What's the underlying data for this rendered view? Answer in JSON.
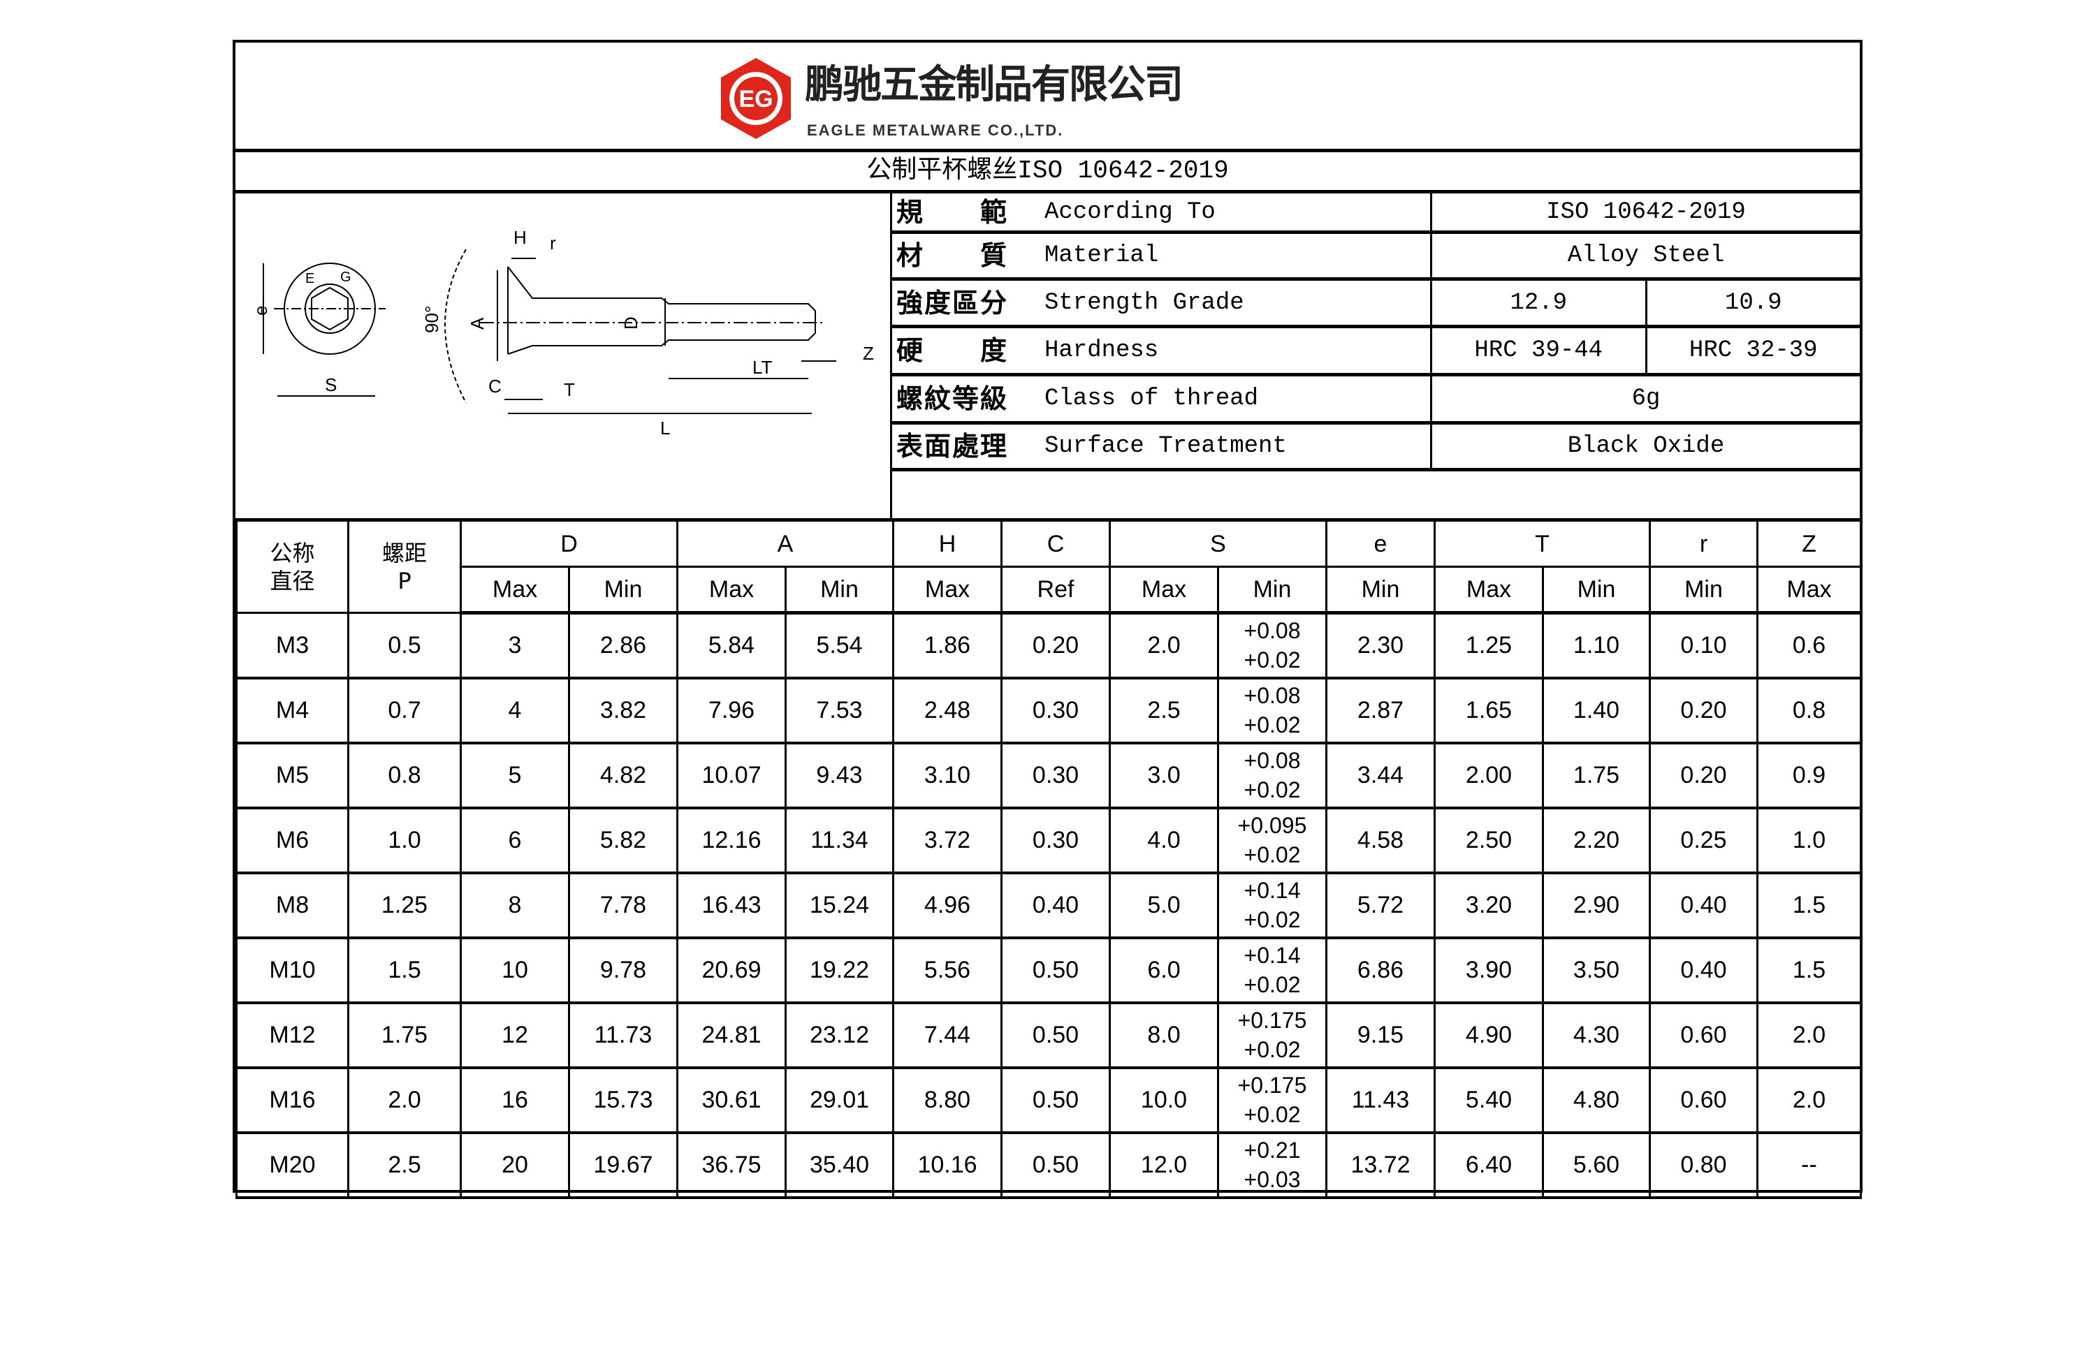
{
  "header": {
    "company_cn": "鹏驰五金制品有限公司",
    "company_en": "EAGLE METALWARE CO.,LTD.",
    "logo_letters": "EG",
    "logo_color": "#e0261b"
  },
  "title": "公制平杯螺丝ISO 10642-2019",
  "diagram_labels": {
    "H": "H",
    "r": "r",
    "e": "e",
    "E": "E",
    "G": "G",
    "angle": "90°",
    "A": "A",
    "D": "D",
    "Z": "Z",
    "LT": "LT",
    "S": "S",
    "C": "C",
    "T": "T",
    "L": "L"
  },
  "spec": [
    {
      "cn": "規　　範",
      "en": "According To",
      "values": [
        "ISO 10642-2019"
      ]
    },
    {
      "cn": "材　　質",
      "en": "Material",
      "values": [
        "Alloy Steel"
      ]
    },
    {
      "cn": "強度區分",
      "en": "Strength Grade",
      "values": [
        "12.9",
        "10.9"
      ]
    },
    {
      "cn": "硬　　度",
      "en": "Hardness",
      "values": [
        "HRC 39-44",
        "HRC 32-39"
      ]
    },
    {
      "cn": "螺紋等級",
      "en": "Class of thread",
      "values": [
        "6g"
      ]
    },
    {
      "cn": "表面處理",
      "en": "Surface Treatment",
      "values": [
        "Black Oxide"
      ]
    }
  ],
  "table": {
    "nominal_header": [
      "公称",
      "直径"
    ],
    "pitch_header": [
      "螺距",
      "P"
    ],
    "groups": [
      "D",
      "A",
      "H",
      "C",
      "S",
      "e",
      "T",
      "r",
      "Z"
    ],
    "subheaders": [
      "Max",
      "Min",
      "Max",
      "Min",
      "Max",
      "Ref",
      "Max",
      "Min",
      "Min",
      "Max",
      "Min",
      "Min",
      "Max"
    ],
    "rows": [
      [
        "M3",
        "0.5",
        "3",
        "2.86",
        "5.84",
        "5.54",
        "1.86",
        "0.20",
        "2.0",
        [
          "+0.08",
          "+0.02"
        ],
        "2.30",
        "1.25",
        "1.10",
        "0.10",
        "0.6"
      ],
      [
        "M4",
        "0.7",
        "4",
        "3.82",
        "7.96",
        "7.53",
        "2.48",
        "0.30",
        "2.5",
        [
          "+0.08",
          "+0.02"
        ],
        "2.87",
        "1.65",
        "1.40",
        "0.20",
        "0.8"
      ],
      [
        "M5",
        "0.8",
        "5",
        "4.82",
        "10.07",
        "9.43",
        "3.10",
        "0.30",
        "3.0",
        [
          "+0.08",
          "+0.02"
        ],
        "3.44",
        "2.00",
        "1.75",
        "0.20",
        "0.9"
      ],
      [
        "M6",
        "1.0",
        "6",
        "5.82",
        "12.16",
        "11.34",
        "3.72",
        "0.30",
        "4.0",
        [
          "+0.095",
          "+0.02"
        ],
        "4.58",
        "2.50",
        "2.20",
        "0.25",
        "1.0"
      ],
      [
        "M8",
        "1.25",
        "8",
        "7.78",
        "16.43",
        "15.24",
        "4.96",
        "0.40",
        "5.0",
        [
          "+0.14",
          "+0.02"
        ],
        "5.72",
        "3.20",
        "2.90",
        "0.40",
        "1.5"
      ],
      [
        "M10",
        "1.5",
        "10",
        "9.78",
        "20.69",
        "19.22",
        "5.56",
        "0.50",
        "6.0",
        [
          "+0.14",
          "+0.02"
        ],
        "6.86",
        "3.90",
        "3.50",
        "0.40",
        "1.5"
      ],
      [
        "M12",
        "1.75",
        "12",
        "11.73",
        "24.81",
        "23.12",
        "7.44",
        "0.50",
        "8.0",
        [
          "+0.175",
          "+0.02"
        ],
        "9.15",
        "4.90",
        "4.30",
        "0.60",
        "2.0"
      ],
      [
        "M16",
        "2.0",
        "16",
        "15.73",
        "30.61",
        "29.01",
        "8.80",
        "0.50",
        "10.0",
        [
          "+0.175",
          "+0.02"
        ],
        "11.43",
        "5.40",
        "4.80",
        "0.60",
        "2.0"
      ],
      [
        "M20",
        "2.5",
        "20",
        "19.67",
        "36.75",
        "35.40",
        "10.16",
        "0.50",
        "12.0",
        [
          "+0.21",
          "+0.03"
        ],
        "13.72",
        "6.40",
        "5.60",
        "0.80",
        "--"
      ]
    ]
  }
}
